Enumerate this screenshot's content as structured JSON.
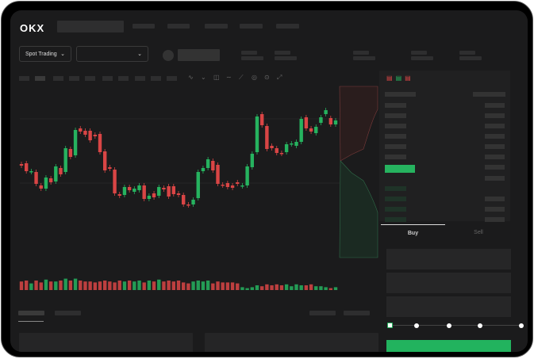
{
  "header": {
    "logo": "OKX"
  },
  "toolbar": {
    "market_type": "Spot Trading",
    "pair_select": ""
  },
  "order_form": {
    "buy_tab": "Buy",
    "sell_tab": "Sell"
  },
  "colors": {
    "up": "#26b35f",
    "down": "#d94545",
    "background": "#1b1b1c"
  },
  "candles": [
    [
      95,
      93
    ],
    [
      96,
      86
    ],
    [
      85,
      86
    ],
    [
      85,
      70
    ],
    [
      68,
      64
    ],
    [
      64,
      78
    ],
    [
      77,
      72
    ],
    [
      73,
      92
    ],
    [
      90,
      82
    ],
    [
      85,
      115
    ],
    [
      114,
      104
    ],
    [
      106,
      138
    ],
    [
      140,
      136
    ],
    [
      137,
      132
    ],
    [
      137,
      125
    ],
    [
      132,
      130
    ],
    [
      133,
      110
    ],
    [
      111,
      87
    ],
    [
      91,
      89
    ],
    [
      88,
      58
    ],
    [
      57,
      55
    ],
    [
      56,
      66
    ],
    [
      66,
      62
    ],
    [
      60,
      64
    ],
    [
      62,
      68
    ],
    [
      68,
      51
    ],
    [
      51,
      55
    ],
    [
      58,
      53
    ],
    [
      55,
      66
    ],
    [
      65,
      63
    ],
    [
      67,
      54
    ],
    [
      67,
      57
    ],
    [
      58,
      56
    ],
    [
      56,
      44
    ],
    [
      44,
      43
    ],
    [
      44,
      50
    ],
    [
      52,
      85
    ],
    [
      86,
      90
    ],
    [
      90,
      101
    ],
    [
      99,
      87
    ],
    [
      94,
      70
    ],
    [
      69,
      68
    ],
    [
      71,
      66
    ],
    [
      68,
      65
    ],
    [
      72,
      70
    ],
    [
      67,
      68
    ],
    [
      68,
      92
    ],
    [
      91,
      108
    ],
    [
      110,
      155
    ],
    [
      158,
      144
    ],
    [
      143,
      114
    ],
    [
      118,
      115
    ],
    [
      115,
      109
    ],
    [
      109,
      108
    ],
    [
      110,
      120
    ],
    [
      120,
      121
    ],
    [
      118,
      123
    ],
    [
      123,
      152
    ],
    [
      154,
      140
    ],
    [
      140,
      136
    ],
    [
      134,
      142
    ],
    [
      147,
      154
    ],
    [
      158,
      163
    ],
    [
      153,
      145
    ],
    [
      145,
      150
    ]
  ],
  "volumes": [
    9,
    10,
    7,
    10,
    8,
    11,
    9,
    9,
    10,
    12,
    10,
    12,
    10,
    9,
    9,
    8,
    9,
    10,
    9,
    8,
    10,
    9,
    10,
    9,
    10,
    8,
    10,
    9,
    11,
    9,
    10,
    9,
    10,
    8,
    7,
    9,
    10,
    9,
    10,
    7,
    9,
    8,
    8,
    8,
    7,
    3,
    2,
    3,
    5,
    4,
    6,
    5,
    6,
    5,
    6,
    4,
    6,
    5,
    5,
    6,
    4,
    4,
    3,
    2,
    3
  ]
}
